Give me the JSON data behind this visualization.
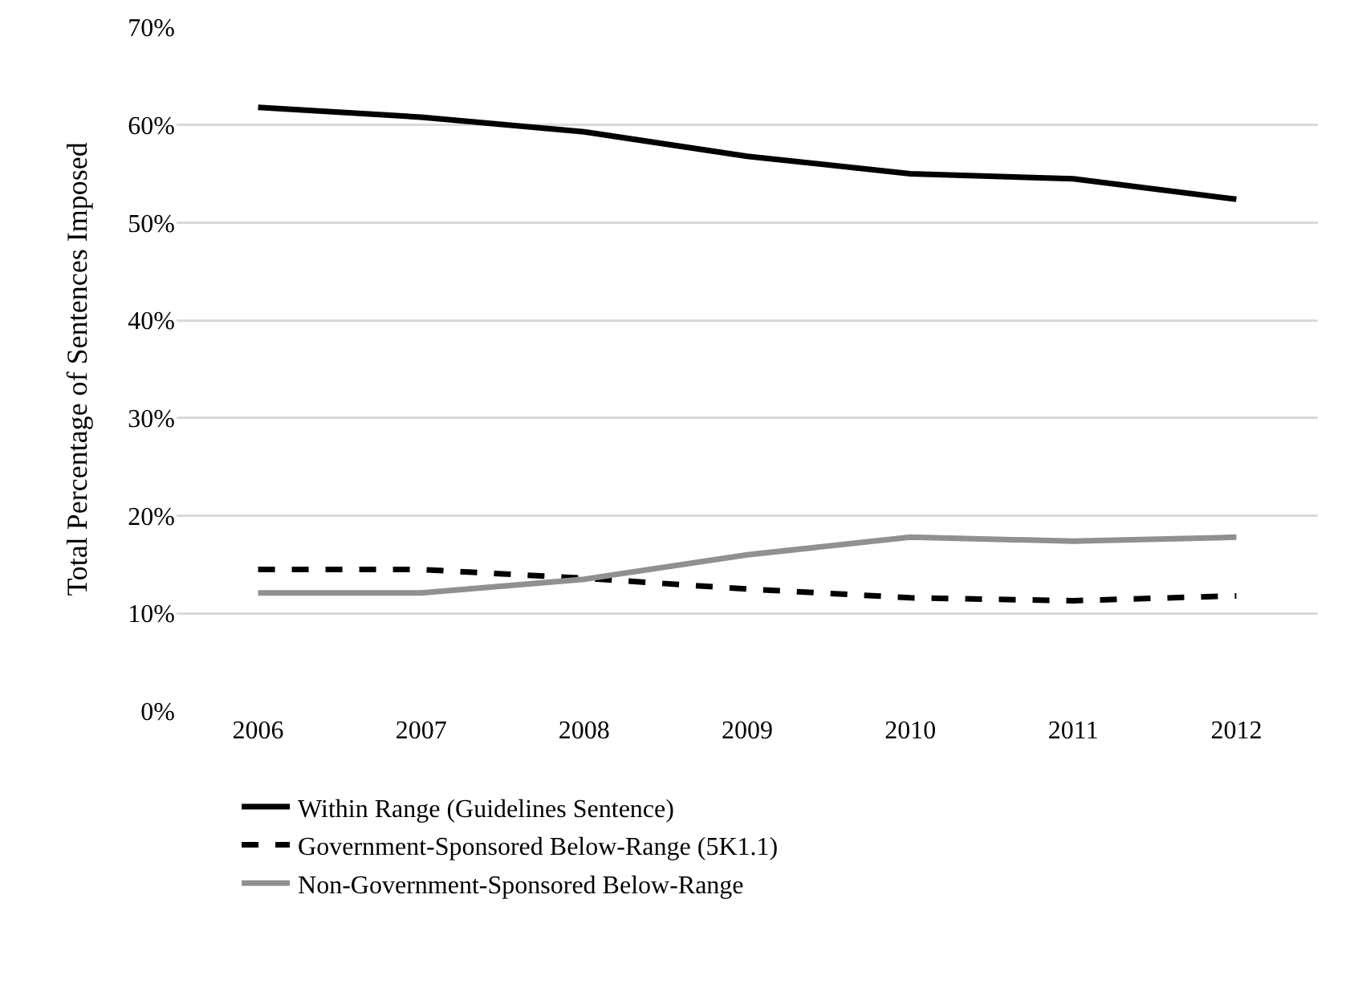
{
  "chart_data": {
    "type": "line",
    "ylabel": "Total Percentage of Sentences Imposed",
    "categories": [
      "2006",
      "2007",
      "2008",
      "2009",
      "2010",
      "2011",
      "2012"
    ],
    "series": [
      {
        "name": "Within Range (Guidelines Sentence)",
        "color": "#000000",
        "line_style": "solid",
        "values": [
          61.8,
          60.8,
          59.3,
          56.8,
          55.0,
          54.5,
          52.4
        ]
      },
      {
        "name": "Government-Sponsored Below-Range (5K1.1)",
        "color": "#000000",
        "line_style": "dashed",
        "values": [
          14.5,
          14.5,
          13.6,
          12.5,
          11.6,
          11.3,
          11.8
        ]
      },
      {
        "name": "Non-Government-Sponsored Below-Range",
        "color": "#909090",
        "line_style": "solid",
        "values": [
          12.1,
          12.1,
          13.5,
          16.0,
          17.8,
          17.4,
          17.8
        ]
      }
    ],
    "ylim": [
      0,
      70
    ],
    "yticks": [
      {
        "value": 0,
        "label": "0%"
      },
      {
        "value": 10,
        "label": "10%"
      },
      {
        "value": 20,
        "label": "20%"
      },
      {
        "value": 30,
        "label": "30%"
      },
      {
        "value": 40,
        "label": "40%"
      },
      {
        "value": 50,
        "label": "50%"
      },
      {
        "value": 60,
        "label": "60%"
      },
      {
        "value": 70,
        "label": "70%"
      }
    ],
    "grid": "y",
    "legend": "bottom"
  }
}
